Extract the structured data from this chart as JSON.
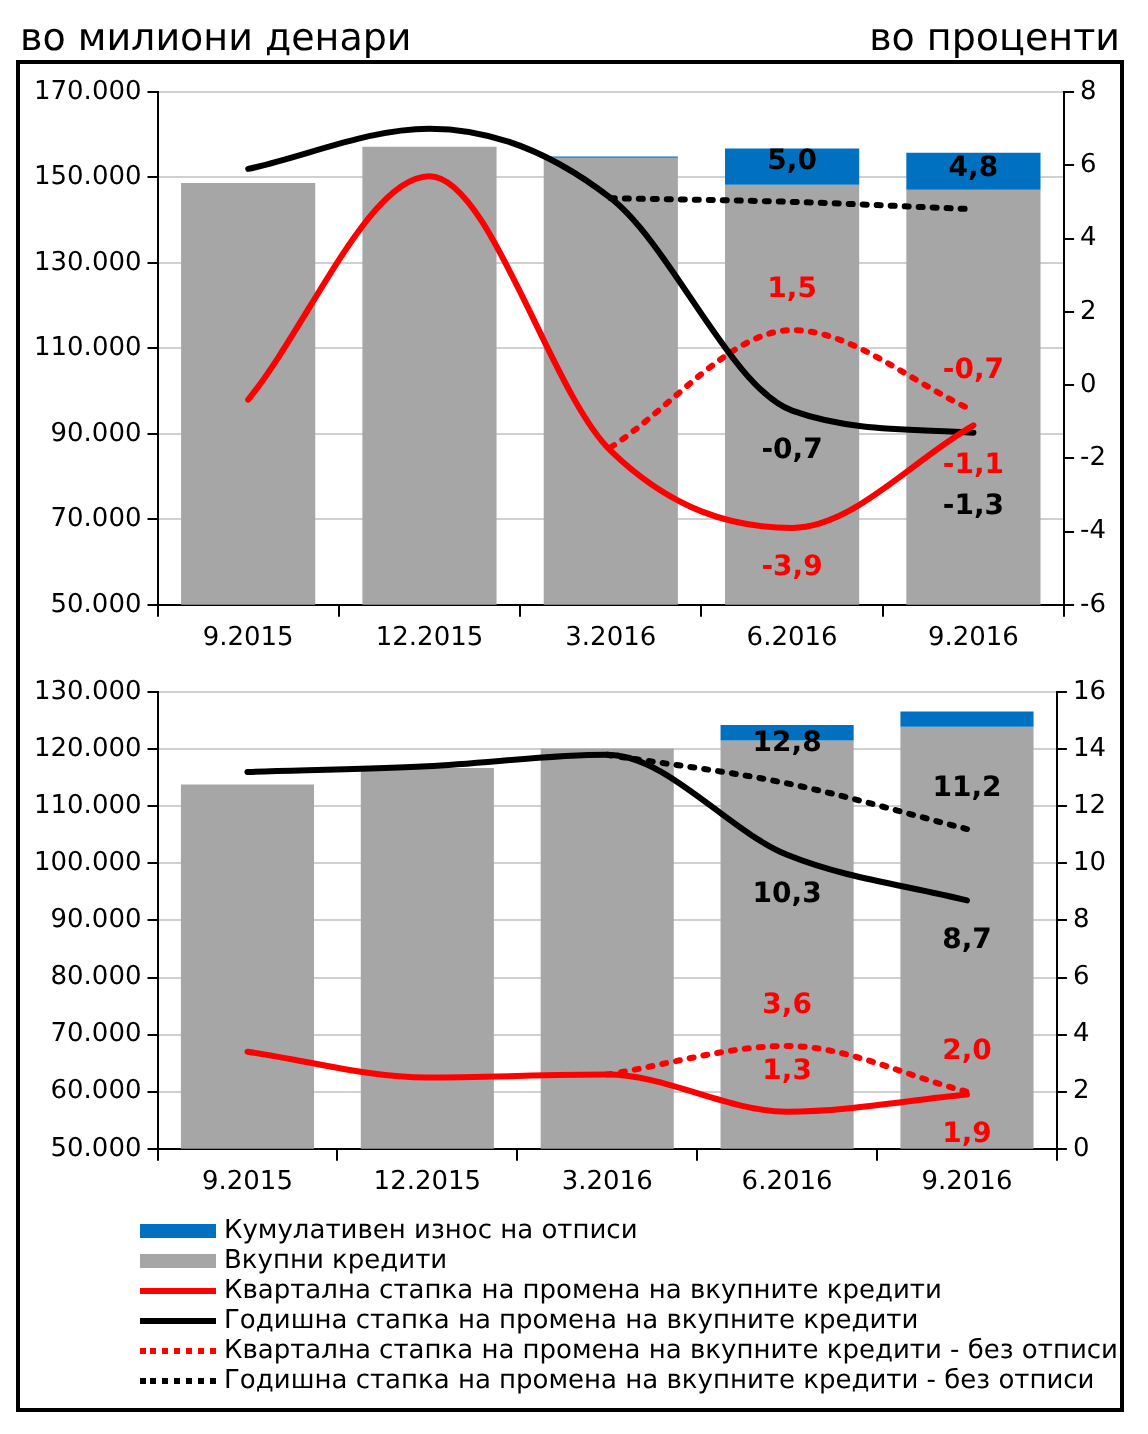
{
  "chart_data": [
    {
      "type": "bar",
      "ylabel": "во милиони денари",
      "y2label": "во проценти",
      "categories": [
        "9.2015",
        "12.2015",
        "3.2016",
        "6.2016",
        "9.2016"
      ],
      "grid": "y",
      "marker": "none",
      "ylim": [
        50000,
        170000
      ],
      "yticks": [
        {
          "value": 50000,
          "label": "50.000"
        },
        {
          "value": 70000,
          "label": "70.000"
        },
        {
          "value": 90000,
          "label": "90.000"
        },
        {
          "value": 110000,
          "label": "110.000"
        },
        {
          "value": 130000,
          "label": "130.000"
        },
        {
          "value": 150000,
          "label": "150.000"
        },
        {
          "value": 170000,
          "label": "170.000"
        }
      ],
      "y2lim": [
        -6,
        8
      ],
      "y2ticks": [
        -6,
        -4,
        -2,
        0,
        2,
        4,
        6,
        8
      ],
      "series": [
        {
          "color": "#0070c0",
          "values": [
            null,
            null,
            300,
            8500,
            8700
          ],
          "base": [
            null,
            null,
            154600,
            148300,
            147100
          ]
        },
        {
          "color": "#a6a6a6",
          "values": [
            148700,
            157200,
            154600,
            148300,
            147100
          ]
        },
        {
          "type": "line",
          "axis": "y2",
          "color": "#ff0000",
          "line_style": "solid",
          "values": [
            -0.4,
            5.7,
            -1.8,
            -3.9,
            -1.1
          ],
          "value_labels": [
            null,
            null,
            null,
            "-3,9",
            "-1,1"
          ]
        },
        {
          "type": "line",
          "axis": "y2",
          "color": "#000000",
          "line_style": "solid",
          "values": [
            5.9,
            7.0,
            5.1,
            -0.7,
            -1.3
          ],
          "value_labels": [
            null,
            null,
            null,
            "-0,7",
            "-1,3"
          ]
        },
        {
          "type": "line",
          "axis": "y2",
          "color": "#ff0000",
          "line_style": "dotted",
          "values": [
            null,
            null,
            -1.7,
            1.5,
            -0.7
          ],
          "value_labels": [
            null,
            null,
            null,
            "1,5",
            "-0,7"
          ]
        },
        {
          "type": "line",
          "axis": "y2",
          "color": "#000000",
          "line_style": "dotted",
          "values": [
            null,
            null,
            5.1,
            5.0,
            4.8
          ],
          "value_labels": [
            null,
            null,
            null,
            "5,0",
            "4,8"
          ]
        }
      ]
    },
    {
      "type": "bar",
      "categories": [
        "9.2015",
        "12.2015",
        "3.2016",
        "6.2016",
        "9.2016"
      ],
      "grid": "y",
      "marker": "none",
      "legend": "bottom",
      "ylim": [
        50000,
        130000
      ],
      "yticks": [
        {
          "value": 50000,
          "label": "50.000"
        },
        {
          "value": 60000,
          "label": "60.000"
        },
        {
          "value": 70000,
          "label": "70.000"
        },
        {
          "value": 80000,
          "label": "80.000"
        },
        {
          "value": 90000,
          "label": "90.000"
        },
        {
          "value": 100000,
          "label": "100.000"
        },
        {
          "value": 110000,
          "label": "110.000"
        },
        {
          "value": 120000,
          "label": "120.000"
        },
        {
          "value": 130000,
          "label": "130.000"
        }
      ],
      "y2lim": [
        0,
        16
      ],
      "y2ticks": [
        0,
        2,
        4,
        6,
        8,
        10,
        12,
        14,
        16
      ],
      "series": [
        {
          "name": "Кумулативен износ на отписи",
          "color": "#0070c0",
          "values": [
            null,
            null,
            null,
            2700,
            2700
          ],
          "base": [
            null,
            null,
            null,
            121500,
            123900
          ]
        },
        {
          "name": "Вкупни кредити",
          "color": "#a6a6a6",
          "values": [
            113800,
            116700,
            120100,
            121500,
            123900
          ]
        },
        {
          "name": "Квартална стапка на промена на вкупните кредити",
          "type": "line",
          "axis": "y2",
          "color": "#ff0000",
          "line_style": "solid",
          "values": [
            3.4,
            2.5,
            2.6,
            1.3,
            1.9
          ],
          "value_labels": [
            null,
            null,
            null,
            "1,3",
            "1,9"
          ]
        },
        {
          "name": "Годишна стапка на промена на вкупните кредити",
          "type": "line",
          "axis": "y2",
          "color": "#000000",
          "line_style": "solid",
          "values": [
            13.2,
            13.4,
            13.8,
            10.3,
            8.7
          ],
          "value_labels": [
            null,
            null,
            null,
            "10,3",
            "8,7"
          ]
        },
        {
          "name": "Квартална стапка на промена на вкупните кредити - без отписи",
          "type": "line",
          "axis": "y2",
          "color": "#ff0000",
          "line_style": "dotted",
          "values": [
            null,
            null,
            2.6,
            3.6,
            2.0
          ],
          "value_labels": [
            null,
            null,
            null,
            "3,6",
            "2,0"
          ]
        },
        {
          "name": "Годишна стапка на промена на вкупните кредити - без отписи",
          "type": "line",
          "axis": "y2",
          "color": "#000000",
          "line_style": "dotted",
          "values": [
            null,
            null,
            13.8,
            12.8,
            11.2
          ],
          "value_labels": [
            null,
            null,
            null,
            "12,8",
            "11,2"
          ]
        }
      ]
    }
  ]
}
